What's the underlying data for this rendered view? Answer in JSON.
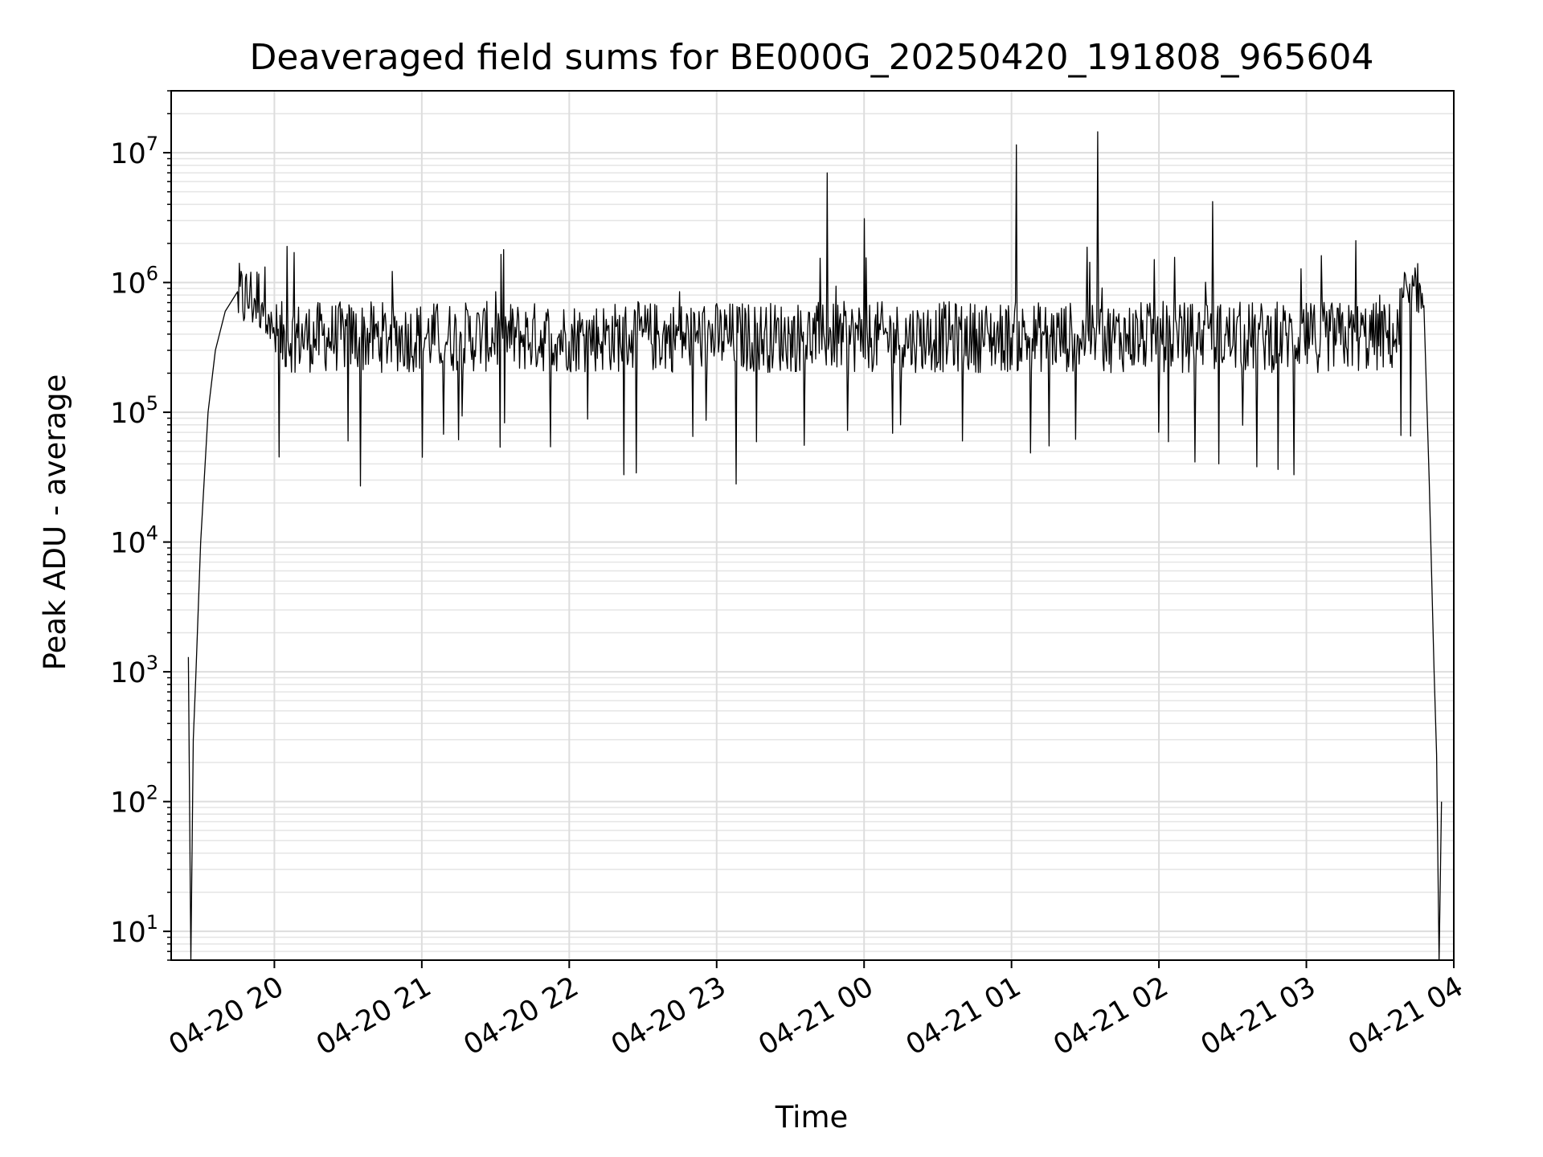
{
  "chart_data": {
    "type": "line",
    "title": "Deaveraged field sums for BE000G_20250420_191808_965604",
    "xlabel": "Time",
    "ylabel": "Peak ADU - average",
    "yscale": "log",
    "ylim": [
      6,
      30000000
    ],
    "xlim": [
      "2025-04-20 19:18",
      "2025-04-21 04:00"
    ],
    "grid": true,
    "line_color": "#000000",
    "x_ticks": [
      {
        "t": "2025-04-20 20:00",
        "label": "04-20 20"
      },
      {
        "t": "2025-04-20 21:00",
        "label": "04-20 21"
      },
      {
        "t": "2025-04-20 22:00",
        "label": "04-20 22"
      },
      {
        "t": "2025-04-20 23:00",
        "label": "04-20 23"
      },
      {
        "t": "2025-04-21 00:00",
        "label": "04-21 00"
      },
      {
        "t": "2025-04-21 01:00",
        "label": "04-21 01"
      },
      {
        "t": "2025-04-21 02:00",
        "label": "04-21 02"
      },
      {
        "t": "2025-04-21 03:00",
        "label": "04-21 03"
      },
      {
        "t": "2025-04-21 04:00",
        "label": "04-21 04"
      }
    ],
    "y_ticks": [
      {
        "value": 10,
        "base": "10",
        "exp": "1"
      },
      {
        "value": 100,
        "base": "10",
        "exp": "2"
      },
      {
        "value": 1000,
        "base": "10",
        "exp": "3"
      },
      {
        "value": 10000,
        "base": "10",
        "exp": "4"
      },
      {
        "value": 100000,
        "base": "10",
        "exp": "5"
      },
      {
        "value": 1000000,
        "base": "10",
        "exp": "6"
      },
      {
        "value": 10000000,
        "base": "10",
        "exp": "7"
      }
    ],
    "series": [
      {
        "points": [
          [
            "2025-04-20 19:25",
            1300
          ],
          [
            "2025-04-20 19:26",
            6
          ],
          [
            "2025-04-20 19:27",
            300
          ],
          [
            "2025-04-20 19:28",
            900
          ],
          [
            "2025-04-20 19:30",
            10000
          ],
          [
            "2025-04-20 19:33",
            100000
          ],
          [
            "2025-04-20 19:36",
            300000
          ],
          [
            "2025-04-20 19:40",
            600000
          ],
          [
            "2025-04-20 19:45",
            850000
          ],
          [
            "2025-04-20 19:50",
            900000
          ],
          [
            "2025-04-20 19:55",
            700000
          ],
          [
            "2025-04-20 20:00",
            450000
          ],
          [
            "2025-04-20 20:05",
            1900000
          ],
          [
            "2025-04-20 20:10",
            400000
          ],
          [
            "2025-04-20 20:30",
            60000
          ],
          [
            "2025-04-20 20:35",
            27000
          ],
          [
            "2025-04-20 21:00",
            45000
          ],
          [
            "2025-04-20 21:30",
            850000
          ],
          [
            "2025-04-20 22:00",
            350000
          ],
          [
            "2025-04-20 22:22",
            33000
          ],
          [
            "2025-04-20 22:45",
            850000
          ],
          [
            "2025-04-20 23:08",
            28000
          ],
          [
            "2025-04-20 23:30",
            400000
          ],
          [
            "2025-04-20 23:45",
            7000000
          ],
          [
            "2025-04-21 00:00",
            3100000
          ],
          [
            "2025-04-21 00:15",
            80000
          ],
          [
            "2025-04-21 00:40",
            60000
          ],
          [
            "2025-04-21 01:02",
            11500000
          ],
          [
            "2025-04-21 01:15",
            55000
          ],
          [
            "2025-04-21 01:35",
            14500000
          ],
          [
            "2025-04-21 02:00",
            70000
          ],
          [
            "2025-04-21 02:22",
            4200000
          ],
          [
            "2025-04-21 02:40",
            38000
          ],
          [
            "2025-04-21 02:55",
            33000
          ],
          [
            "2025-04-21 03:00",
            300000
          ],
          [
            "2025-04-21 03:20",
            2100000
          ],
          [
            "2025-04-21 03:30",
            800000
          ],
          [
            "2025-04-21 03:45",
            600000
          ],
          [
            "2025-04-21 03:50",
            30000
          ],
          [
            "2025-04-21 03:52",
            1000
          ],
          [
            "2025-04-21 03:53",
            230
          ],
          [
            "2025-04-21 03:54",
            6
          ],
          [
            "2025-04-21 03:55",
            100
          ]
        ]
      }
    ]
  }
}
